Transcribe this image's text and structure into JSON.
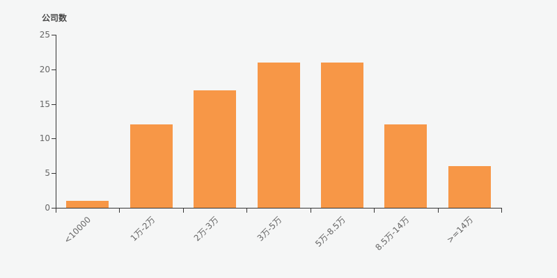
{
  "chart_data": {
    "type": "bar",
    "title": "",
    "ylabel": "公司数",
    "xlabel": "",
    "categories": [
      "<10000",
      "1万-2万",
      "2万-3万",
      "3万-5万",
      "5万-8.5万",
      "8.5万-14万",
      ">=14万"
    ],
    "values": [
      1,
      12,
      17,
      21,
      21,
      12,
      6
    ],
    "ylim": [
      0,
      25
    ],
    "yticks": [
      0,
      5,
      10,
      15,
      20,
      25
    ],
    "grid": false,
    "legend": null
  },
  "colors": {
    "background": "#f5f6f6",
    "bar": "#f79747",
    "axis": "#333333",
    "tick_label": "#666666",
    "title": "#464646"
  }
}
